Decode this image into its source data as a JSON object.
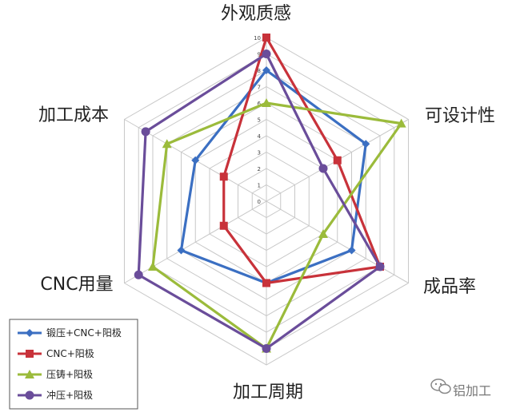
{
  "chart_data": {
    "type": "radar",
    "categories": [
      "外观质感",
      "可设计性",
      "成品率",
      "加工周期",
      "CNC用量",
      "加工成本"
    ],
    "range": [
      0,
      10
    ],
    "ticks": [
      "0",
      "1",
      "2",
      "3",
      "4",
      "5",
      "6",
      "7",
      "8",
      "9",
      "10"
    ],
    "grid": true,
    "legend_position": "bottom-left",
    "series": [
      {
        "name": "锻压+CNC+阳极",
        "color": "#3b6fc2",
        "marker": "diamond",
        "values": [
          8,
          7,
          6,
          5,
          6,
          5
        ]
      },
      {
        "name": "CNC+阳极",
        "color": "#c8323a",
        "marker": "square",
        "values": [
          10,
          5,
          8,
          5,
          3,
          3
        ]
      },
      {
        "name": "压铸+阳极",
        "color": "#9bbb3b",
        "marker": "triangle",
        "values": [
          6,
          9.5,
          4,
          9,
          8,
          7
        ]
      },
      {
        "name": "冲压+阳极",
        "color": "#6a4d9a",
        "marker": "circle",
        "values": [
          9,
          4,
          8,
          9,
          9,
          8.5
        ]
      }
    ]
  },
  "watermark": {
    "text": "铝加工",
    "icon": "wechat-icon"
  }
}
